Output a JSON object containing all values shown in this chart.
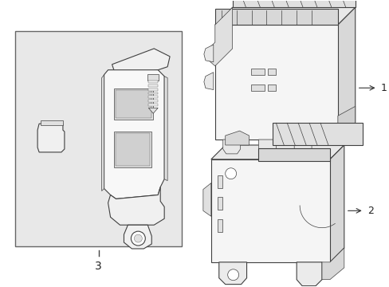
{
  "bg": "#ffffff",
  "box_bg": "#e8e8e8",
  "lc": "#404040",
  "lc2": "#606060",
  "white": "#ffffff",
  "part_bg": "#f5f5f5",
  "top_bg": "#e0e0e0",
  "side_bg": "#d8d8d8",
  "conn_bg": "#c8c8c8",
  "lw": 0.8,
  "lw_thin": 0.5,
  "lw_thick": 1.0
}
